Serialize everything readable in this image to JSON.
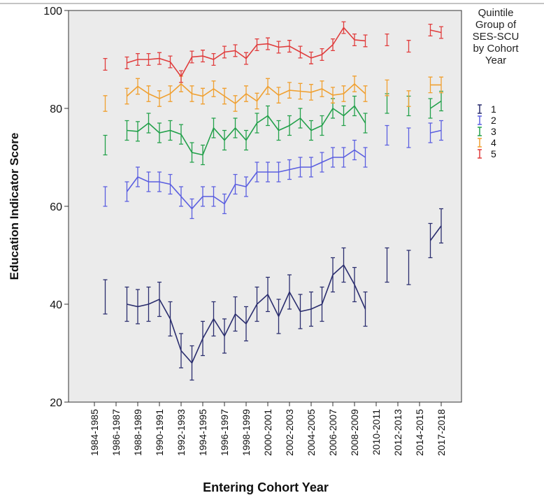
{
  "chart_data": {
    "type": "line",
    "y_label": "Education Indicator Score",
    "x_label": "Entering Cohort Year",
    "legend_title": "Quintile Group of SES-SCU by Cohort Year",
    "categories": [
      "1984-1985",
      null,
      "1986-1987",
      null,
      "1988-1989",
      null,
      "1990-1991",
      null,
      "1992-1993",
      null,
      "1994-1995",
      null,
      "1996-1997",
      null,
      "1998-1999",
      null,
      "2000-2001",
      null,
      "2002-2003",
      null,
      "2004-2005",
      null,
      "2006-2007",
      null,
      "2008-2009",
      null,
      "2010-2011",
      null,
      "2012-2013",
      null,
      "2014-2015",
      null,
      "2017-2018"
    ],
    "ylim": [
      20,
      100
    ],
    "yticks": [
      20,
      40,
      60,
      80,
      100
    ],
    "series": [
      {
        "name": "1",
        "color": "#2a2d6e",
        "error": 3.5,
        "values": [
          null,
          41.5,
          null,
          40,
          39.5,
          40,
          41,
          37,
          30.5,
          28,
          33,
          37,
          33.5,
          38,
          36,
          40,
          42,
          37.5,
          42.5,
          38.5,
          39,
          40,
          46,
          48,
          44,
          39,
          null,
          48,
          null,
          47.5,
          null,
          53,
          56
        ]
      },
      {
        "name": "2",
        "color": "#5a5ee0",
        "error": 2,
        "values": [
          null,
          62,
          null,
          63,
          66,
          65,
          65,
          64.5,
          62,
          59.5,
          62,
          62,
          60.5,
          64.5,
          64,
          67,
          67,
          67,
          67.5,
          68,
          68,
          69,
          70,
          70,
          71.5,
          70,
          null,
          74.5,
          null,
          74,
          null,
          75,
          75.5
        ]
      },
      {
        "name": "3",
        "color": "#22a04a",
        "error": 2,
        "values": [
          null,
          72.5,
          null,
          75.5,
          75.3,
          77,
          75,
          75.5,
          74.7,
          71,
          70.5,
          76,
          73.5,
          76,
          73.5,
          77,
          78.5,
          75.5,
          76.5,
          78,
          75.5,
          76.5,
          80,
          78.5,
          80.5,
          77,
          null,
          81,
          null,
          80.5,
          null,
          80,
          81.5
        ]
      },
      {
        "name": "4",
        "color": "#f0a030",
        "error": 1.6,
        "values": [
          null,
          81,
          null,
          82.5,
          84.5,
          83,
          82,
          83,
          85,
          83,
          82.5,
          84,
          82.5,
          81,
          83,
          81.5,
          84.5,
          82.7,
          83.7,
          83.5,
          83.3,
          84,
          82.7,
          83,
          85,
          83,
          null,
          84.2,
          null,
          82,
          null,
          84.8,
          84.8
        ]
      },
      {
        "name": "5",
        "color": "#e03c3c",
        "error": 1.2,
        "values": [
          null,
          89,
          null,
          89.3,
          90,
          90,
          90.2,
          89.5,
          86.5,
          90.5,
          90.7,
          90,
          91.5,
          91.8,
          90.2,
          93,
          93.2,
          92.5,
          92.7,
          91.5,
          90.3,
          91,
          93,
          96.5,
          94,
          93.8,
          null,
          94,
          null,
          92.7,
          null,
          96,
          95.5
        ]
      }
    ]
  }
}
